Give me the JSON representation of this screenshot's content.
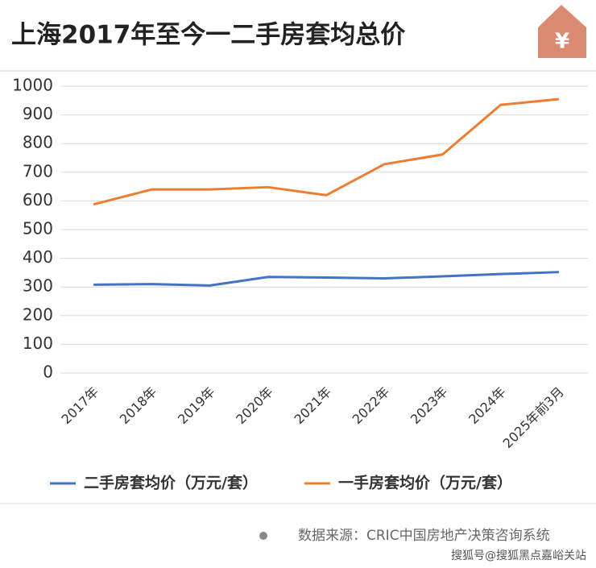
{
  "chart_data": {
    "type": "line",
    "title": "上海2017年至今一二手房套均总价",
    "icon_label": "¥",
    "categories": [
      "2017年",
      "2018年",
      "2019年",
      "2020年",
      "2021年",
      "2022年",
      "2023年",
      "2024年",
      "2025年前3月"
    ],
    "series": [
      {
        "name": "二手房套均价（万元/套）",
        "color": "#4472c4",
        "values": [
          308,
          310,
          305,
          335,
          333,
          330,
          337,
          345,
          352
        ]
      },
      {
        "name": "一手房套均价（万元/套）",
        "color": "#ed7d31",
        "values": [
          588,
          640,
          640,
          648,
          620,
          728,
          762,
          935,
          955
        ]
      }
    ],
    "ylim": [
      0,
      1000
    ],
    "yticks": [
      0,
      100,
      200,
      300,
      400,
      500,
      600,
      700,
      800,
      900,
      1000
    ],
    "grid": true,
    "legend": "bottom",
    "source": "数据来源：CRIC中国房地产决策咨询系统",
    "watermark": "搜狐号@搜狐黑点嘉峪关站"
  }
}
